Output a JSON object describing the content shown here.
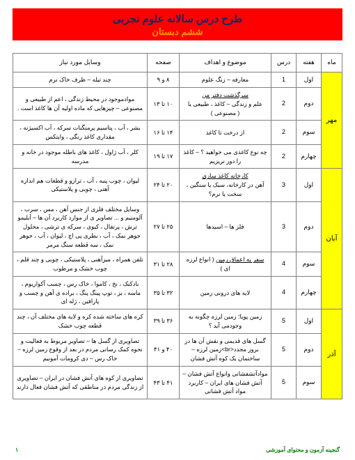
{
  "title": {
    "line1": "طرح درس سالانه علوم تجربی",
    "line2": "ششم دبستان"
  },
  "headers": {
    "month": "ماه",
    "week": "هفته",
    "lesson": "درس",
    "topic": "موضوع و اهداف",
    "page": "صفحه",
    "tools": "وسایل مورد نیاز"
  },
  "months": [
    {
      "name": "مهر",
      "weeks": [
        {
          "week": "اول",
          "lesson": "1",
          "topic": "معارفه – زنگ علوم",
          "page": "۸ و ۹",
          "tools": "چند تیله – ظرف خاک نرم"
        },
        {
          "week": "دوم",
          "lesson": "2",
          "topic_html": "<span class='und'>سرگذشت دفتر من</span><br>علم و زندگی – کاغذ ، طبیعی یا<br>( مصنوعی )",
          "page": "۱۰ تا ۱۳",
          "tools": "موادموجود در محیط زندگی ، اعم از طبیعی و مصنوعی – چیزهایی که ماده اولیه آن ها کاغذ است ."
        },
        {
          "week": "سوم",
          "lesson": "2",
          "topic": "از درخت تا کاغذ",
          "page": "۱۴ تا ۱۶",
          "tools": "بشر ، آب ، پتاسیم پرمنگنات سرکه ، آب اکسیژنه ، مقداری کاغذ رنگی ، وایتکس"
        },
        {
          "week": "چهارم",
          "lesson": "2",
          "topic": "چه نوع کاغذی می خواهید ؟ – کاغذ را دور نریزیم",
          "page": "۱۷ تا ۱۹",
          "tools": "کلر ، آب ژاول ، کاغذ های باطله موجود در خانه و مدرسه"
        }
      ]
    },
    {
      "name": "آبان",
      "weeks": [
        {
          "week": "اول",
          "lesson": "3",
          "topic_html": "<span class='und'>کارخانه کاغذ سازی</span><br>آهن در کارخانه، سبک یا سنگین ،<br>سخت یا نرم؟",
          "page": "۲۰ تا ۲۴",
          "tools": "لیوان ، چوب پنبه ، آب ، ترازو و قطعات هم اندازه آهنی ، چوبی و پلاستیکی"
        },
        {
          "week": "دوم",
          "lesson": "3",
          "topic": "فلز ها – اسیدها",
          "page": "۲۵ تا ۲۷",
          "tools": "وسایل مختلف فلزی از جنس آهن ، مس ، سرب ، آلومنیم و ... تصاویر ی از موارد کاربرد آن ها – آبلیمو ترش ، پرتقال ، کیوی ، سرکه ی ترشی ، محلول جوهر نمک ، آب ، بطری پی اچ ، لیوان ، آب ، جوهر نمک ، سه قطعه سنگ مرمر"
        },
        {
          "week": "سوم",
          "lesson": "4",
          "topic_html": "<span class='und'>سفر به اعماق زمین</span> ( انواع لرزه<br>ای )",
          "page": "۲۸ تا ۳۱",
          "tools": "تلفن همراه ، میزآهنی ، پلاستیکی ، چوبی و چند قلم ، چوب خشک و مرطوب"
        },
        {
          "week": "چهارم",
          "lesson": "4",
          "topic": "لایه های درونی زمین",
          "page": "۳۲ تا ۳۵",
          "tools": "بادکنک ، نخ ، کاموا ، خاک رس ، چسب آکواریوم ، ماسه ، بز ، توپ پینگ پنگ ، براده ی آهن و چسب و پارافین ، ژله ای"
        }
      ]
    },
    {
      "name": "آذر",
      "weeks": [
        {
          "week": "اول",
          "lesson": "5",
          "topic": "زمین پویا؛ زمین لرزه چگونه به وجودمی آید ؟",
          "page": "۳۶ تا ۳۹",
          "tools": "کره های ساخته شده کره و لایه های مختلف آن ، چند قطعه چوب خشک"
        },
        {
          "week": "دوم",
          "lesson": "5",
          "topic": "گسل های قدیمی و نقش آن ها در بروز مجدد<br>زمین لرزه – ساختمان یک کوه آتش فشان",
          "page": "۴۰ و ۴۱",
          "tools": "تصاویری از گسل ها – تصاویر مربوط به فعالیت و نحوه کمک رسانی مردم در بعد از وقوع زمین لرزه – خاک رس – دی کرومات آمونیم"
        },
        {
          "week": "سوم",
          "lesson": "5",
          "topic": "موادآتشفشانی وانواع آتش فشان – آتش فشان های ایران – کاربرد مواد آتش فشانی",
          "page": "۴۱ تا ۴۳",
          "tools": "تصاویری از کوه های آتش فشان در ایران – تصاویری از زندگی مردم در مناطقی که آتش فشان فعال دارند"
        }
      ]
    }
  ],
  "footer": {
    "right": "گنجینه آزمون و محتوای آموزشی",
    "page": "۱"
  }
}
